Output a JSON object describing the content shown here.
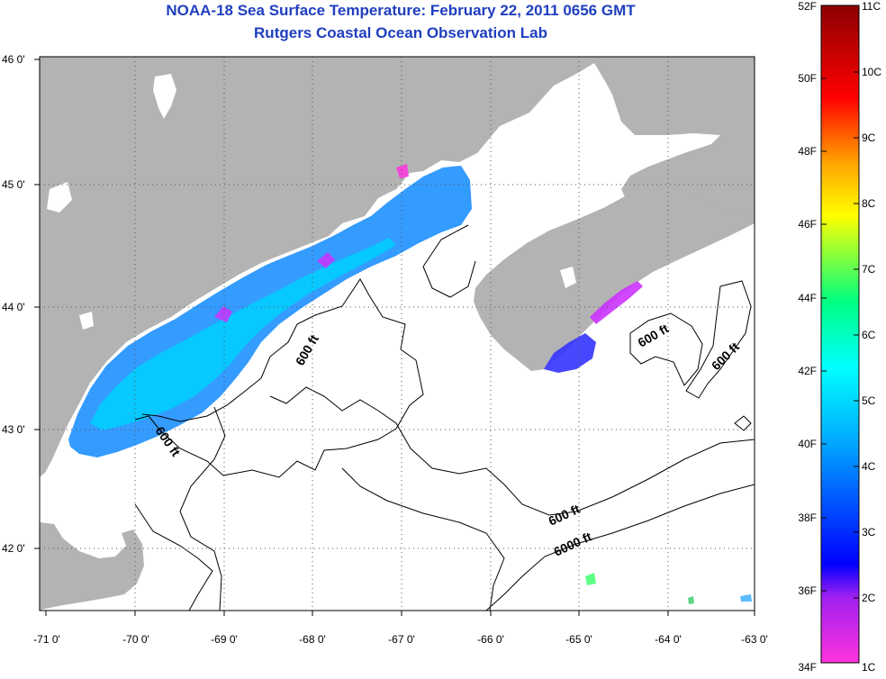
{
  "title": "NOAA-18 Sea Surface Temperature:  February 22, 2011 0656 GMT",
  "subtitle": "Rutgers Coastal Ocean Observation Lab",
  "lon_labels": [
    "-71 0'",
    "-70 0'",
    "-69 0'",
    "-68 0'",
    "-67 0'",
    "-66 0'",
    "-65 0'",
    "-64 0'",
    "-63 0'"
  ],
  "lat_labels": [
    "46 0'",
    "45 0'",
    "44 0'",
    "43 0'",
    "42 0'"
  ],
  "map": {
    "lon_range": [
      -71,
      -63
    ],
    "lat_range": [
      41.55,
      46.05
    ],
    "land_color": "#b3b3b3",
    "water_color": "#ffffff",
    "contour_color": "#000000"
  },
  "contour_labels": [
    "600 ft",
    "600 ft",
    "600 ft",
    "600 ft",
    "600 ft",
    "6000 ft"
  ],
  "colorbar": {
    "fahrenheit": [
      "52F",
      "50F",
      "48F",
      "46F",
      "44F",
      "42F",
      "40F",
      "38F",
      "36F",
      "34F"
    ],
    "celsius": [
      "11C",
      "10C",
      "9C",
      "8C",
      "7C",
      "6C",
      "5C",
      "4C",
      "3C",
      "2C",
      "1C"
    ],
    "colors": [
      "#ff33dd",
      "#a020f0",
      "#0000ff",
      "#00b4ff",
      "#00ffff",
      "#00ff80",
      "#ffff00",
      "#ffa500",
      "#ff0000",
      "#8b0000"
    ]
  }
}
